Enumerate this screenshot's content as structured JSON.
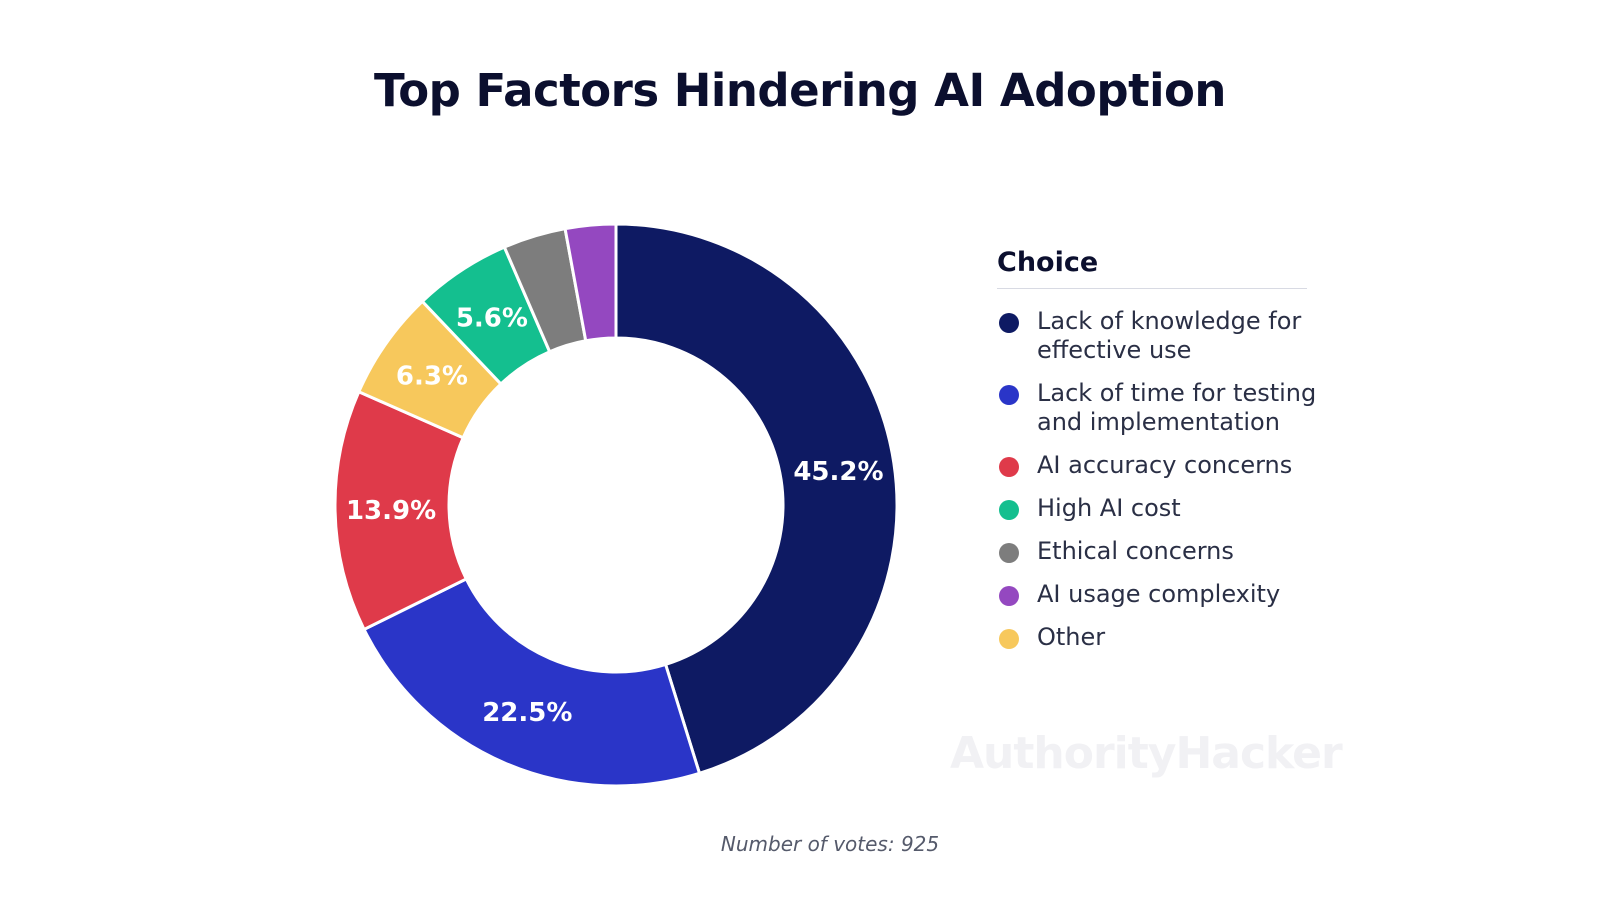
{
  "chart_data": {
    "type": "pie",
    "title": "Top Factors Hindering AI Adoption",
    "legend_title": "Choice",
    "legend_position": "right",
    "categories": [
      "Lack of knowledge for effective use",
      "Lack of time for testing and implementation",
      "AI accuracy concerns",
      "High AI cost",
      "Ethical concerns",
      "AI usage complexity",
      "Other"
    ],
    "values": [
      45.2,
      22.5,
      13.9,
      5.6,
      3.6,
      2.9,
      6.3
    ],
    "data_labels": [
      "45.2%",
      "22.5%",
      "13.9%",
      "5.6%",
      "",
      "",
      "6.3%"
    ],
    "colors": [
      "#0e1a63",
      "#2a35c8",
      "#df3a4a",
      "#14bf8f",
      "#7d7d7d",
      "#9448c0",
      "#f7c85c"
    ],
    "slice_order": [
      0,
      1,
      2,
      6,
      3,
      4,
      5
    ],
    "note": "Number of votes: 925"
  },
  "watermark": "AuthorityHacker"
}
